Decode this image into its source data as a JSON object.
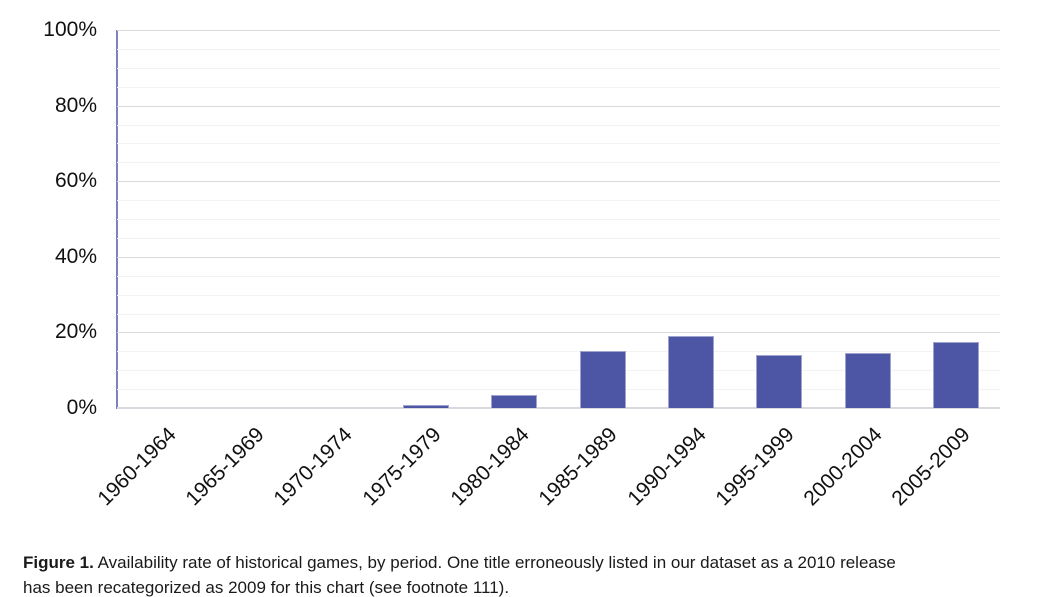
{
  "chart_data": {
    "type": "bar",
    "title": "",
    "xlabel": "",
    "ylabel": "",
    "categories": [
      "1960-1964",
      "1965-1969",
      "1970-1974",
      "1975-1979",
      "1980-1984",
      "1985-1989",
      "1990-1994",
      "1995-1999",
      "2000-2004",
      "2005-2009"
    ],
    "values": [
      0,
      0,
      0,
      0.8,
      3.5,
      15.2,
      19.0,
      14.0,
      14.5,
      17.5
    ],
    "value_unit": "%",
    "ylim": [
      0,
      100
    ],
    "y_ticks": [
      {
        "value": 0,
        "label": "0%"
      },
      {
        "value": 20,
        "label": "20%"
      },
      {
        "value": 40,
        "label": "40%"
      },
      {
        "value": 60,
        "label": "60%"
      },
      {
        "value": 80,
        "label": "80%"
      },
      {
        "value": 100,
        "label": "100%"
      }
    ],
    "minor_grid_step": 5,
    "grid": true,
    "legend": false,
    "colors": {
      "bar_fill": "#4d55a5",
      "bar_border": "#a0a4cc",
      "y_axis_line": "#7d81bc",
      "major_grid": "#d9d9d9",
      "minor_grid": "#f3f3f3",
      "text": "#111111"
    }
  },
  "caption": {
    "label": "Figure 1.",
    "line1": " Availability rate of historical games, by period. One title erroneously listed in our dataset as a 2010 release",
    "line2": "has been recategorized as 2009 for this chart (see footnote 111)."
  }
}
